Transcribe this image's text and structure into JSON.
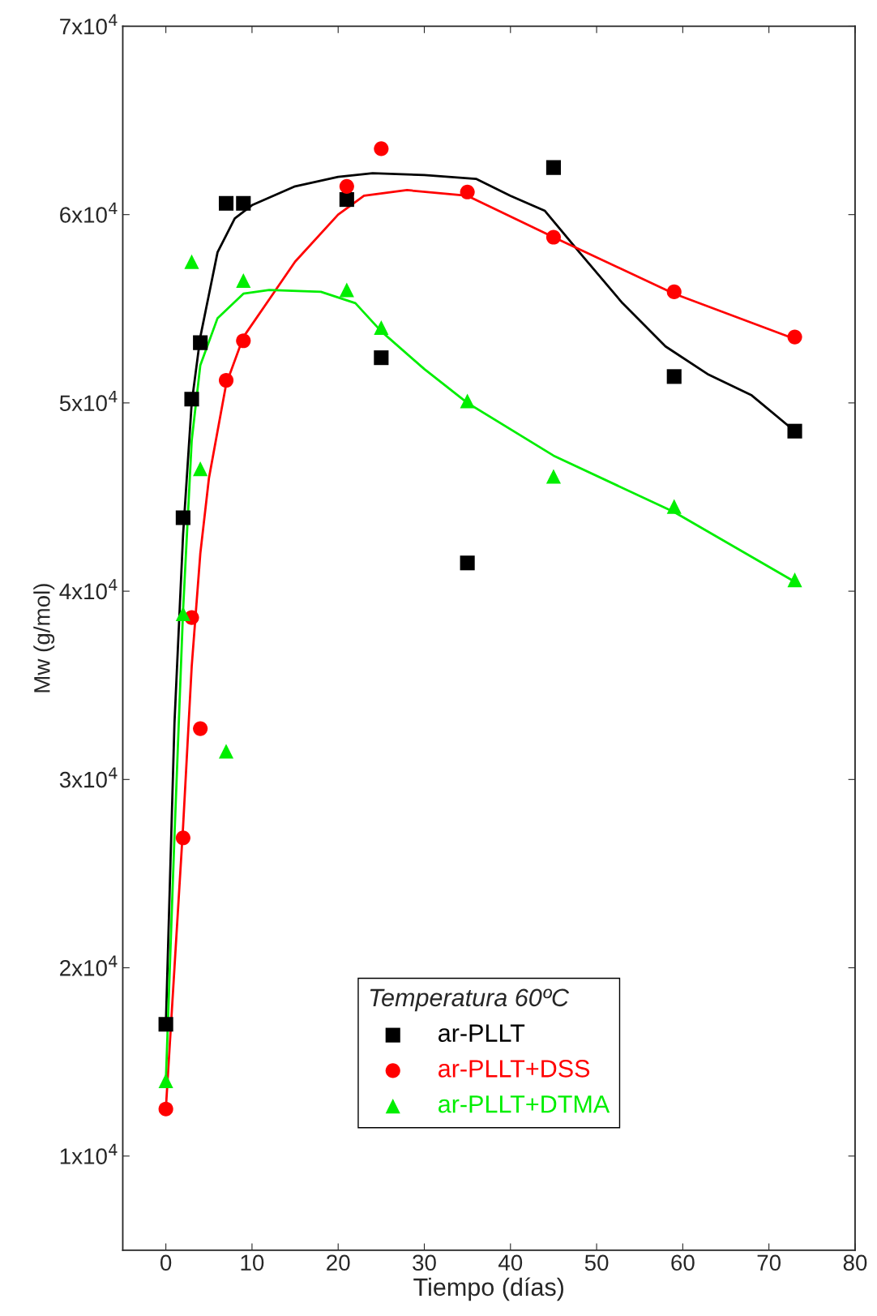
{
  "chart_data": {
    "type": "scatter",
    "xlabel": "Tiempo (días)",
    "ylabel": "Mw (g/mol)",
    "legend_title": "Temperatura 60ºC",
    "legend": "bottom",
    "grid": false,
    "xlim": [
      -5,
      80
    ],
    "xticks": [
      0,
      10,
      20,
      30,
      40,
      50,
      60,
      70,
      80
    ],
    "ylim": [
      5000,
      70000
    ],
    "yticks": [
      {
        "value": 10000,
        "label": "1x10$^{4}$"
      },
      {
        "value": 20000,
        "label": "2x10$^{4}$"
      },
      {
        "value": 30000,
        "label": "3x10$^{4}$"
      },
      {
        "value": 40000,
        "label": "4x10$^{4}$"
      },
      {
        "value": 50000,
        "label": "5x10$^{4}$"
      },
      {
        "value": 60000,
        "label": "6x10$^{4}$"
      },
      {
        "value": 70000,
        "label": "7x10$^{4}$"
      }
    ],
    "series": [
      {
        "name": "ar-PLLT",
        "marker": "square",
        "color": "#000000",
        "x": [
          0,
          2,
          3,
          4,
          7,
          9,
          21,
          25,
          35,
          45,
          59,
          73
        ],
        "values": [
          17000,
          43900,
          50200,
          53200,
          60600,
          60600,
          60800,
          52400,
          41500,
          62500,
          51400,
          48500
        ]
      },
      {
        "name": "ar-PLLT+DSS",
        "marker": "circle",
        "color": "#ff0000",
        "x": [
          0,
          2,
          3,
          4,
          7,
          9,
          21,
          25,
          35,
          45,
          59,
          73
        ],
        "values": [
          12500,
          26900,
          38600,
          32700,
          51200,
          53300,
          61500,
          63500,
          61200,
          58800,
          55900,
          53500
        ]
      },
      {
        "name": "ar-PLLT+DTMA",
        "marker": "triangle",
        "color": "#00ee00",
        "x": [
          0,
          2,
          3,
          4,
          7,
          9,
          21,
          25,
          35,
          45,
          59,
          73
        ],
        "values": [
          14000,
          38800,
          57500,
          46500,
          31500,
          56500,
          56000,
          54000,
          50100,
          46100,
          44500,
          40600
        ]
      },
      {
        "type": "line",
        "marker": "none",
        "color": "#000000",
        "x": [
          0,
          1,
          2,
          3,
          4,
          6,
          8,
          10,
          15,
          20,
          24,
          30,
          36,
          40,
          44,
          48,
          53,
          58,
          63,
          68,
          73
        ],
        "values": [
          17000,
          33000,
          43000,
          50000,
          53500,
          58000,
          59800,
          60500,
          61500,
          62000,
          62200,
          62100,
          61900,
          61000,
          60200,
          58000,
          55300,
          53000,
          51500,
          50400,
          48500
        ]
      },
      {
        "type": "line",
        "marker": "none",
        "color": "#ff0000",
        "x": [
          0,
          1,
          2,
          3,
          4,
          5,
          7,
          9,
          12,
          15,
          20,
          23,
          28,
          35,
          45,
          59,
          73
        ],
        "values": [
          12500,
          20000,
          27500,
          36000,
          42000,
          46000,
          51000,
          53500,
          55500,
          57500,
          60000,
          61000,
          61300,
          61000,
          58800,
          55800,
          53400
        ]
      },
      {
        "type": "line",
        "marker": "none",
        "color": "#00ee00",
        "x": [
          0,
          1,
          2,
          3,
          4,
          6,
          9,
          12,
          18,
          22,
          25,
          30,
          35,
          45,
          59,
          73
        ],
        "values": [
          14000,
          27000,
          39000,
          48000,
          52000,
          54500,
          55800,
          56000,
          55900,
          55300,
          53800,
          51800,
          50000,
          47200,
          44200,
          40500
        ]
      }
    ]
  }
}
